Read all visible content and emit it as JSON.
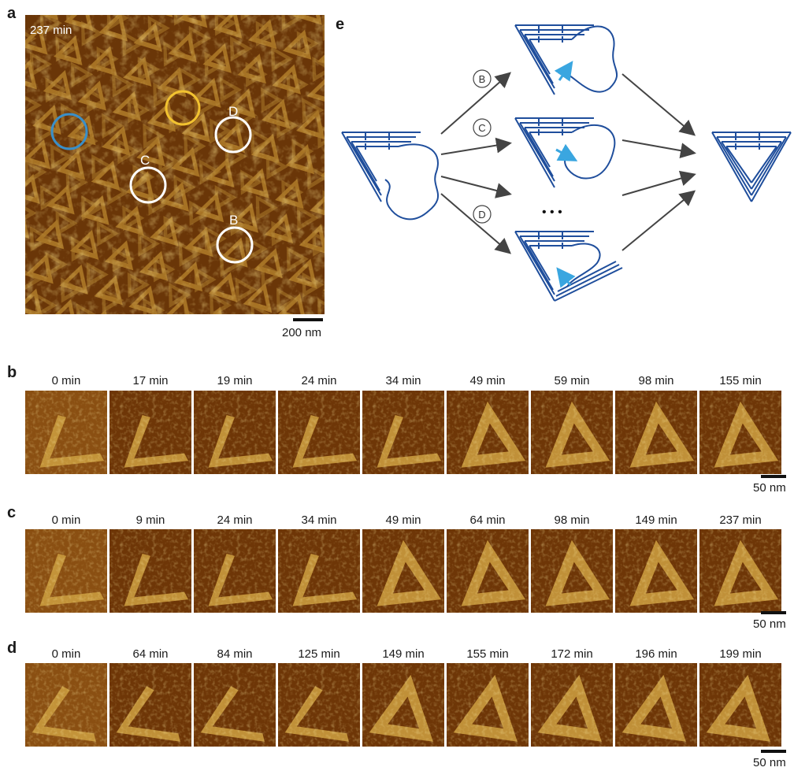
{
  "panels": {
    "a": {
      "letter": "a",
      "time_label": "237 min",
      "scale_label": "200 nm",
      "circle_labels": [
        "D",
        "C",
        "B"
      ],
      "circle_colors": [
        "#3a8fc8",
        "#f2c230",
        "#ffffff",
        "#ffffff",
        "#ffffff"
      ]
    },
    "b": {
      "letter": "b",
      "times": [
        "0 min",
        "17 min",
        "19 min",
        "24 min",
        "34 min",
        "49 min",
        "59 min",
        "98 min",
        "155 min"
      ],
      "scale_label": "50 nm"
    },
    "c": {
      "letter": "c",
      "times": [
        "0 min",
        "9 min",
        "24 min",
        "34 min",
        "49 min",
        "64 min",
        "98 min",
        "149 min",
        "237 min"
      ],
      "scale_label": "50 nm"
    },
    "d": {
      "letter": "d",
      "times": [
        "0 min",
        "64 min",
        "84 min",
        "125 min",
        "149 min",
        "155 min",
        "172 min",
        "196 min",
        "199 min"
      ],
      "scale_label": "50 nm"
    },
    "e": {
      "letter": "e",
      "path_labels": [
        "B",
        "C",
        "D"
      ],
      "ellipsis": "• • •",
      "structure_color": "#1f4e9c",
      "arrow_color": "#3aa6e0"
    }
  }
}
